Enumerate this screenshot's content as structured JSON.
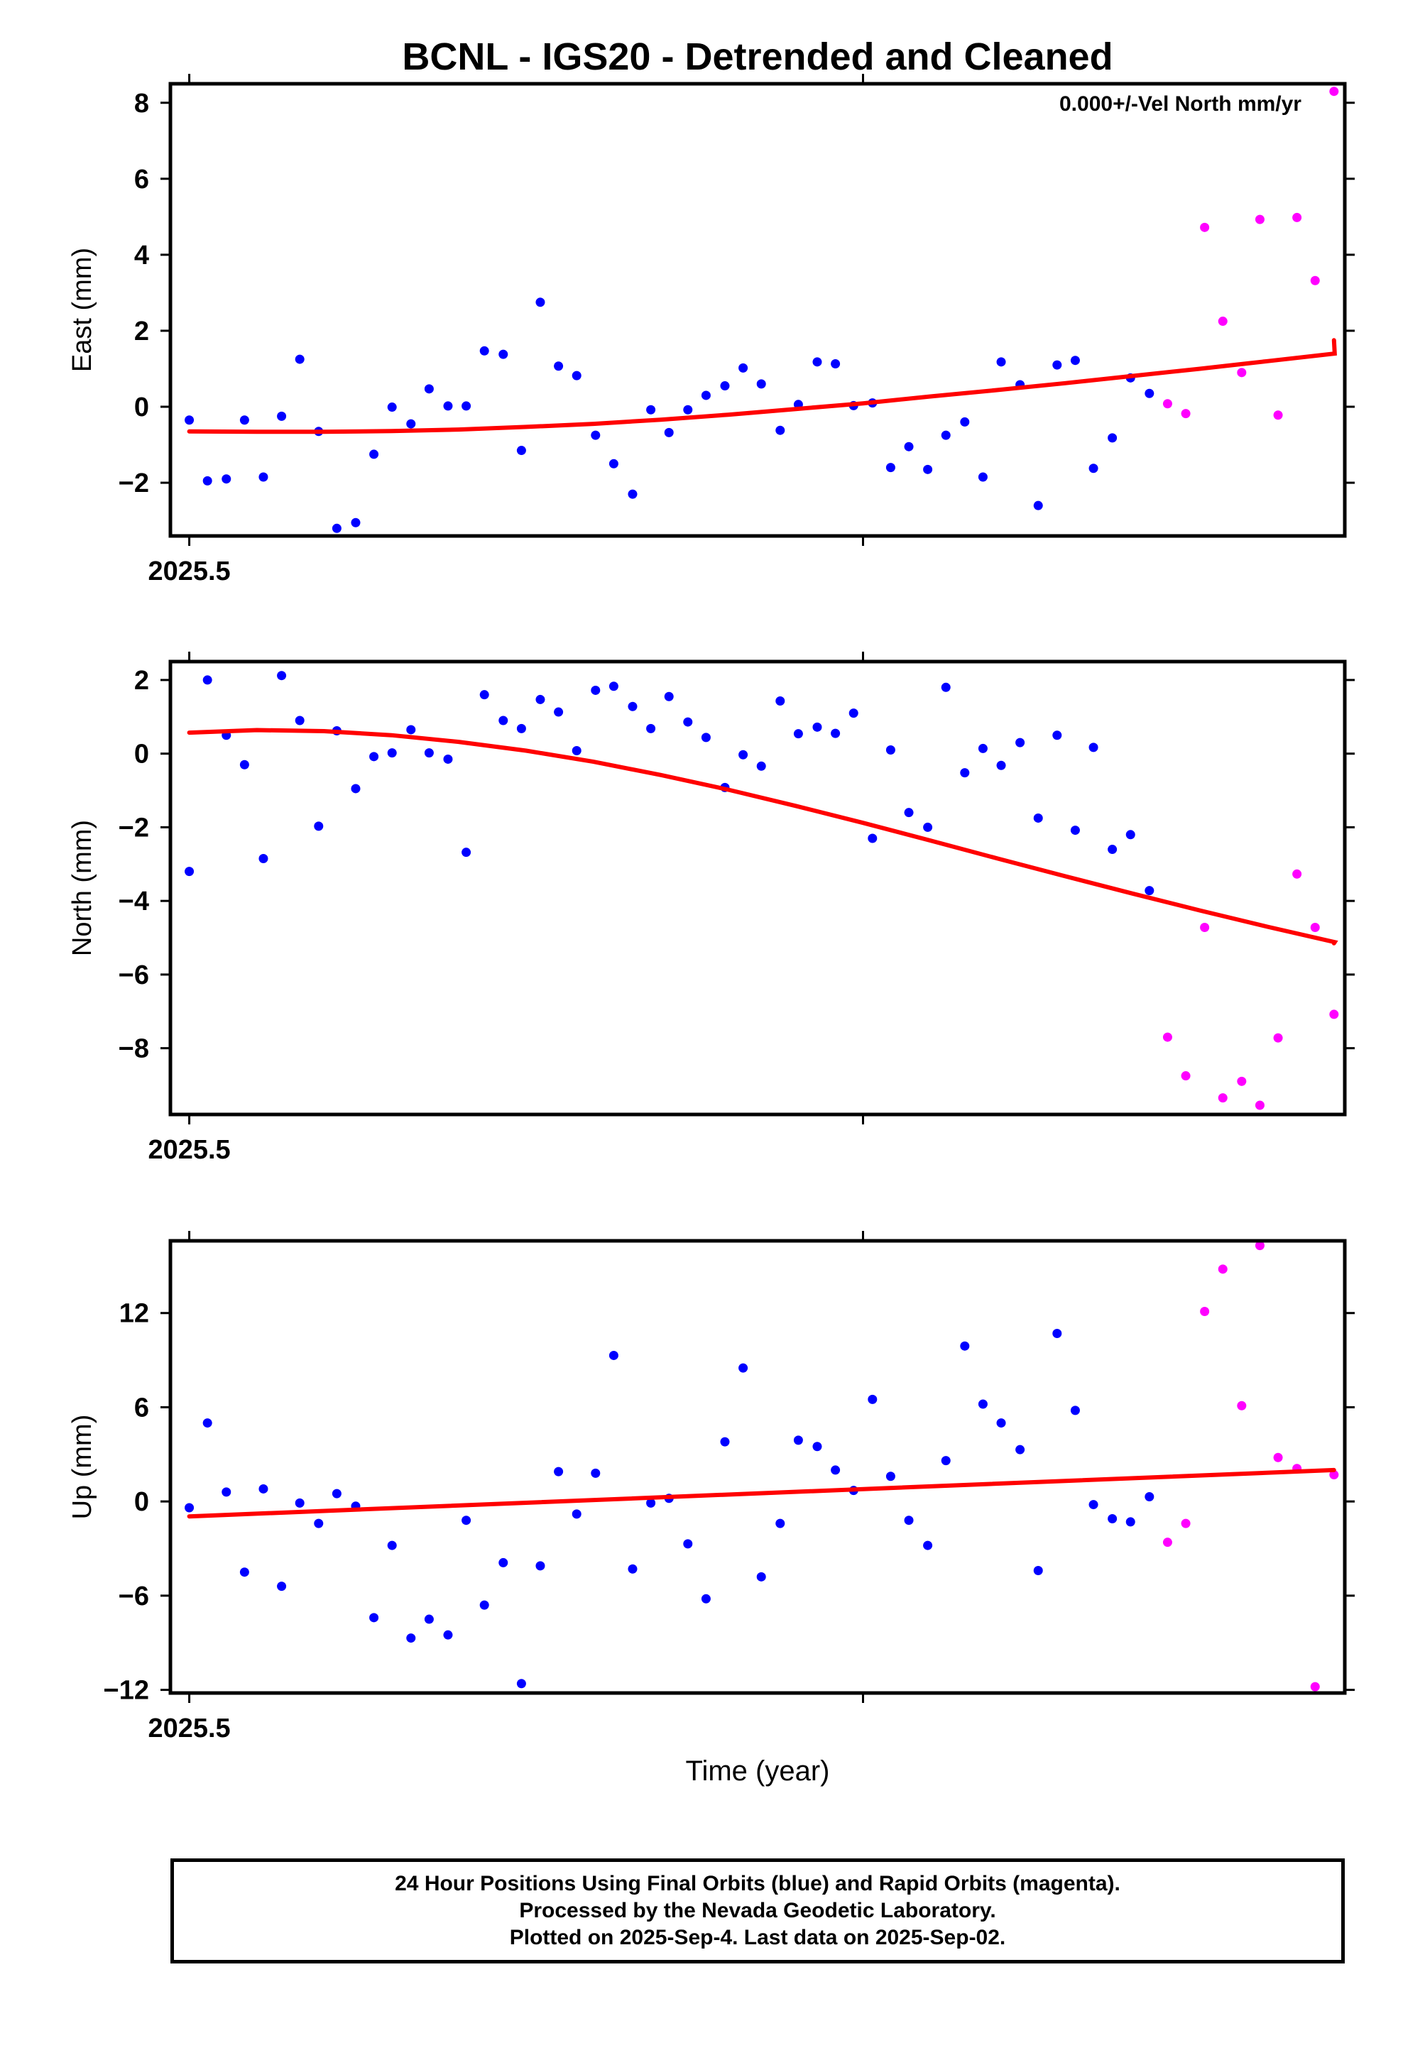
{
  "figure": {
    "title": "BCNL - IGS20 - Detrended and Cleaned",
    "annotation": "0.000+/-Vel North mm/yr",
    "xlabel": "Time (year)",
    "caption": [
      "24 Hour Positions Using Final Orbits (blue) and Rapid Orbits (magenta).",
      "Processed by the Nevada Geodetic Laboratory.",
      "Plotted on 2025-Sep-4. Last data on 2025-Sep-02."
    ]
  },
  "colors": {
    "final": "#0000ff",
    "rapid": "#ff00ff",
    "fit": "#ff0000"
  },
  "chart_data": [
    {
      "type": "scatter",
      "ylabel": "East (mm)",
      "xlim": [
        2025.4972,
        2025.6715
      ],
      "ylim": [
        -3.4,
        8.5
      ],
      "yticks": [
        -2,
        0,
        2,
        4,
        6,
        8
      ],
      "xticks": [
        2025.5,
        2025.6
      ],
      "xtick_labels": [
        "2025.5",
        ""
      ],
      "series": [
        {
          "kind": "final",
          "x": [
            2025.5,
            2025.5027,
            2025.5055,
            2025.5082,
            2025.511,
            2025.5137,
            2025.5164,
            2025.5192,
            2025.5219,
            2025.5247,
            2025.5274,
            2025.5301,
            2025.5329,
            2025.5356,
            2025.5384,
            2025.5411,
            2025.5438,
            2025.5466,
            2025.5493,
            2025.5521,
            2025.5548,
            2025.5575,
            2025.5603,
            2025.563,
            2025.5658,
            2025.5685,
            2025.5712,
            2025.574,
            2025.5767,
            2025.5795,
            2025.5822,
            2025.5849,
            2025.5877,
            2025.5904,
            2025.5932,
            2025.5959,
            2025.5986,
            2025.6014,
            2025.6041,
            2025.6068,
            2025.6096,
            2025.6123,
            2025.6151,
            2025.6178,
            2025.6205,
            2025.6233,
            2025.626,
            2025.6288,
            2025.6315,
            2025.6342,
            2025.637,
            2025.6397
          ],
          "y": [
            -0.35,
            -1.95,
            -1.9,
            -0.35,
            -1.85,
            -0.25,
            1.25,
            -0.65,
            -3.2,
            -3.05,
            -1.25,
            -0.01,
            -0.45,
            0.47,
            0.02,
            0.02,
            1.47,
            1.38,
            -1.15,
            2.75,
            1.07,
            0.82,
            -0.75,
            -1.5,
            -2.3,
            -0.08,
            -0.68,
            -0.08,
            0.3,
            0.55,
            1.02,
            0.6,
            -0.62,
            0.06,
            1.18,
            1.13,
            0.03,
            0.1,
            -1.6,
            -1.05,
            -1.65,
            -0.75,
            -0.4,
            -1.85,
            1.18,
            0.58,
            -2.6,
            1.1,
            1.22,
            -1.62,
            -0.82,
            0.76
          ]
        },
        {
          "kind": "final",
          "x": [
            2025.6425
          ],
          "y": [
            0.35
          ]
        },
        {
          "kind": "rapid",
          "x": [
            2025.6452,
            2025.6479,
            2025.6507,
            2025.6534,
            2025.6562,
            2025.6589,
            2025.6616,
            2025.6644,
            2025.6671
          ],
          "y": [
            0.08,
            -0.18,
            4.72,
            2.25,
            0.9,
            4.93,
            -0.22,
            4.98,
            3.32
          ]
        },
        {
          "kind": "rapid",
          "x": [
            2025.6699
          ],
          "y": [
            8.3
          ]
        }
      ],
      "fit": {
        "x": [
          2025.5,
          2025.51,
          2025.52,
          2025.53,
          2025.54,
          2025.55,
          2025.56,
          2025.57,
          2025.58,
          2025.59,
          2025.6,
          2025.61,
          2025.62,
          2025.63,
          2025.64,
          2025.65,
          2025.66,
          2025.67,
          2025.6699
        ],
        "y": [
          -0.65,
          -0.66,
          -0.66,
          -0.64,
          -0.6,
          -0.53,
          -0.45,
          -0.34,
          -0.21,
          -0.06,
          0.09,
          0.27,
          0.44,
          0.62,
          0.81,
          1.0,
          1.2,
          1.4,
          1.75
        ]
      }
    },
    {
      "type": "scatter",
      "ylabel": "North (mm)",
      "xlim": [
        2025.4972,
        2025.6715
      ],
      "ylim": [
        -9.8,
        2.5
      ],
      "yticks": [
        -8,
        -6,
        -4,
        -2,
        0,
        2
      ],
      "xticks": [
        2025.5,
        2025.6
      ],
      "xtick_labels": [
        "2025.5",
        ""
      ],
      "series": [
        {
          "kind": "final",
          "x": [
            2025.5,
            2025.5027,
            2025.5055,
            2025.5082,
            2025.511,
            2025.5137,
            2025.5164,
            2025.5192,
            2025.5219,
            2025.5247,
            2025.5274,
            2025.5301,
            2025.5329,
            2025.5356,
            2025.5384,
            2025.5411,
            2025.5438,
            2025.5466,
            2025.5493,
            2025.5521,
            2025.5548,
            2025.5575,
            2025.5603,
            2025.563,
            2025.5658,
            2025.5685,
            2025.5712,
            2025.574,
            2025.5767,
            2025.5795,
            2025.5822,
            2025.5849,
            2025.5877,
            2025.5904,
            2025.5932,
            2025.5959,
            2025.5986,
            2025.6014,
            2025.6041,
            2025.6068,
            2025.6096,
            2025.6123,
            2025.6151,
            2025.6178,
            2025.6205,
            2025.6233,
            2025.626,
            2025.6288,
            2025.6315,
            2025.6342,
            2025.637,
            2025.6397,
            2025.6425
          ],
          "y": [
            -3.2,
            2.0,
            0.5,
            -0.3,
            -2.85,
            2.12,
            0.9,
            -1.97,
            0.62,
            -0.95,
            -0.08,
            0.02,
            0.65,
            0.02,
            -0.15,
            -2.68,
            1.6,
            0.9,
            0.68,
            1.47,
            1.13,
            0.08,
            1.72,
            1.83,
            1.28,
            0.68,
            1.55,
            0.86,
            0.44,
            -0.92,
            -0.03,
            -0.34,
            1.43,
            0.54,
            0.72,
            0.55,
            1.1,
            -2.3,
            0.1,
            -1.6,
            -2.0,
            1.8,
            -0.52,
            0.14,
            -0.32,
            0.3,
            -1.75,
            0.5,
            -2.08,
            0.17,
            -2.6,
            -2.2,
            -3.72
          ]
        },
        {
          "kind": "rapid",
          "x": [
            2025.6452,
            2025.6479,
            2025.6507,
            2025.6534,
            2025.6562,
            2025.6589,
            2025.6616,
            2025.6644,
            2025.6671,
            2025.6699
          ],
          "y": [
            -7.7,
            -8.75,
            -4.72,
            -9.35,
            -8.9,
            -9.55,
            -7.72,
            -3.27,
            -4.72,
            -7.08
          ]
        }
      ],
      "fit": {
        "x": [
          2025.5,
          2025.51,
          2025.52,
          2025.53,
          2025.54,
          2025.55,
          2025.56,
          2025.57,
          2025.58,
          2025.59,
          2025.6,
          2025.61,
          2025.62,
          2025.63,
          2025.64,
          2025.65,
          2025.66,
          2025.67,
          2025.6699
        ],
        "y": [
          0.57,
          0.64,
          0.61,
          0.5,
          0.32,
          0.08,
          -0.22,
          -0.58,
          -0.98,
          -1.42,
          -1.88,
          -2.36,
          -2.85,
          -3.33,
          -3.8,
          -4.26,
          -4.7,
          -5.12,
          -5.15
        ]
      }
    },
    {
      "type": "scatter",
      "ylabel": "Up (mm)",
      "xlim": [
        2025.4972,
        2025.6715
      ],
      "ylim": [
        -12.2,
        16.6
      ],
      "yticks": [
        -12,
        -6,
        0,
        6,
        12
      ],
      "xticks": [
        2025.5,
        2025.6
      ],
      "xtick_labels": [
        "2025.5",
        ""
      ],
      "series": [
        {
          "kind": "final",
          "x": [
            2025.5,
            2025.5027,
            2025.5055,
            2025.5082,
            2025.511,
            2025.5137,
            2025.5164,
            2025.5192,
            2025.5219,
            2025.5247,
            2025.5274,
            2025.5301,
            2025.5329,
            2025.5356,
            2025.5384,
            2025.5411,
            2025.5438,
            2025.5466,
            2025.5493,
            2025.5521,
            2025.5548,
            2025.5575,
            2025.5603,
            2025.563,
            2025.5658,
            2025.5685,
            2025.5712,
            2025.574,
            2025.5767,
            2025.5795,
            2025.5822,
            2025.5849,
            2025.5877,
            2025.5904,
            2025.5932,
            2025.5959,
            2025.5986,
            2025.6014,
            2025.6041,
            2025.6068,
            2025.6096,
            2025.6123,
            2025.6151,
            2025.6178,
            2025.6205,
            2025.6233,
            2025.626,
            2025.6288,
            2025.6315,
            2025.6342,
            2025.637,
            2025.6397,
            2025.6425
          ],
          "y": [
            -0.4,
            5.0,
            0.6,
            -4.5,
            0.8,
            -5.4,
            -0.1,
            -1.4,
            0.5,
            -0.3,
            -7.4,
            -2.8,
            -8.7,
            -7.5,
            -8.5,
            -1.2,
            -6.6,
            -3.9,
            -11.6,
            -4.1,
            1.9,
            -0.8,
            1.8,
            9.3,
            -4.3,
            -0.1,
            0.2,
            -2.7,
            -6.2,
            3.8,
            8.5,
            -4.8,
            -1.4,
            3.9,
            3.5,
            2.0,
            0.7,
            6.5,
            1.6,
            -1.2,
            -2.8,
            2.6,
            9.9,
            6.2,
            5.0,
            3.3,
            -4.4,
            10.7,
            5.8,
            -0.2,
            -1.1,
            -1.3,
            0.3
          ]
        },
        {
          "kind": "rapid",
          "x": [
            2025.6452,
            2025.6479,
            2025.6507,
            2025.6534,
            2025.6562,
            2025.6589,
            2025.6616,
            2025.6644,
            2025.6671,
            2025.6699
          ],
          "y": [
            -2.6,
            -1.4,
            12.1,
            14.8,
            6.1,
            16.3,
            2.8,
            2.1,
            -11.8,
            1.7
          ]
        }
      ],
      "fit": {
        "x": [
          2025.5,
          2025.6699
        ],
        "y": [
          -0.95,
          2.0
        ]
      }
    }
  ]
}
